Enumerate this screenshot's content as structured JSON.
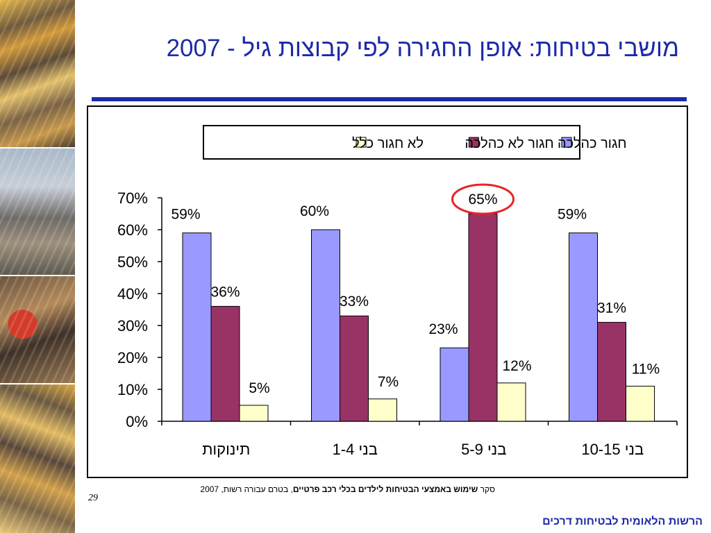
{
  "slide": {
    "title": "מושבי בטיחות: אופן החגירה לפי קבוצות גיל - 2007",
    "source_prefix": "סקר ",
    "source_bold": "שימוש באמצעי הבטיחות לילדים בכלי רכב פרטיים",
    "source_suffix": ", בטרם עבורה רשות, 2007",
    "page_number": "29",
    "footer": "הרשות הלאומית לבטיחות דרכים",
    "side_photos": [
      "traffic-photo",
      "car-crash-photo",
      "child-seat-photo",
      "traffic-photo"
    ]
  },
  "colors": {
    "title": "#1c2aa8",
    "belted_properly": "#9999ff",
    "belted_improperly": "#993366",
    "not_belted": "#ffffcc",
    "highlight": "#e8232a"
  },
  "chart_data": {
    "type": "bar",
    "categories": [
      "תינוקות",
      "בני 1-4",
      "בני 5-9",
      "בני 10-15"
    ],
    "series": [
      {
        "name": "חגור כהלכה",
        "values": [
          59,
          60,
          23,
          59
        ],
        "labels": [
          "59%",
          "60%",
          "23%",
          "59%"
        ],
        "color_key": "belted_properly"
      },
      {
        "name": "חגור לא כהלכה",
        "values": [
          36,
          33,
          65,
          31
        ],
        "labels": [
          "36%",
          "33%",
          "65%",
          "31%"
        ],
        "color_key": "belted_improperly"
      },
      {
        "name": "לא חגור כלל",
        "values": [
          5,
          7,
          12,
          11
        ],
        "labels": [
          "5%",
          "7%",
          "12%",
          "11%"
        ],
        "color_key": "not_belted"
      }
    ],
    "y_ticks": [
      "0%",
      "10%",
      "20%",
      "30%",
      "40%",
      "50%",
      "60%",
      "70%"
    ],
    "ylim": [
      0,
      70
    ],
    "legend_position": "top",
    "grid": false,
    "highlighted_label": {
      "series": 1,
      "category": 2,
      "text": "65%"
    }
  }
}
